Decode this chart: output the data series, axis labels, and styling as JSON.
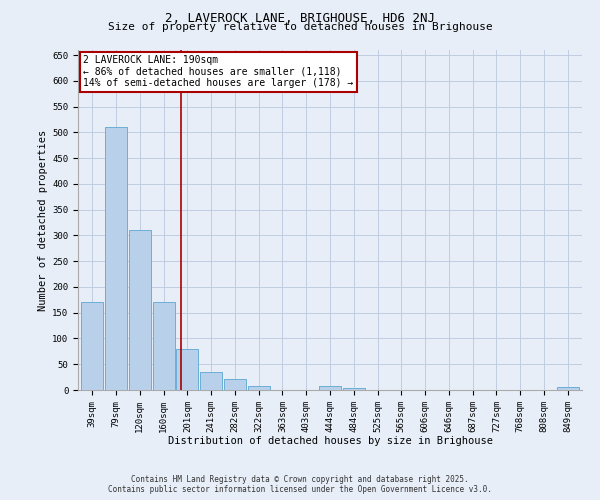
{
  "title": "2, LAVEROCK LANE, BRIGHOUSE, HD6 2NJ",
  "subtitle": "Size of property relative to detached houses in Brighouse",
  "xlabel": "Distribution of detached houses by size in Brighouse",
  "ylabel": "Number of detached properties",
  "bar_labels": [
    "39sqm",
    "79sqm",
    "120sqm",
    "160sqm",
    "201sqm",
    "241sqm",
    "282sqm",
    "322sqm",
    "363sqm",
    "403sqm",
    "444sqm",
    "484sqm",
    "525sqm",
    "565sqm",
    "606sqm",
    "646sqm",
    "687sqm",
    "727sqm",
    "768sqm",
    "808sqm",
    "849sqm"
  ],
  "bar_values": [
    170,
    510,
    310,
    170,
    80,
    35,
    22,
    8,
    0,
    0,
    8,
    3,
    0,
    0,
    0,
    0,
    0,
    0,
    0,
    0,
    5
  ],
  "bar_color": "#b8d0ea",
  "bar_edge_color": "#6baed6",
  "background_color": "#e8eef8",
  "grid_color": "#c0cce0",
  "vline_x": 3.72,
  "vline_color": "#aa0000",
  "annotation_text": "2 LAVEROCK LANE: 190sqm\n← 86% of detached houses are smaller (1,118)\n14% of semi-detached houses are larger (178) →",
  "annotation_box_facecolor": "#ffffff",
  "annotation_box_edgecolor": "#aa0000",
  "ylim": [
    0,
    660
  ],
  "yticks": [
    0,
    50,
    100,
    150,
    200,
    250,
    300,
    350,
    400,
    450,
    500,
    550,
    600,
    650
  ],
  "footer1": "Contains HM Land Registry data © Crown copyright and database right 2025.",
  "footer2": "Contains public sector information licensed under the Open Government Licence v3.0.",
  "title_fontsize": 9,
  "subtitle_fontsize": 8,
  "axis_label_fontsize": 7.5,
  "tick_fontsize": 6.5,
  "ann_fontsize": 7,
  "footer_fontsize": 5.5
}
